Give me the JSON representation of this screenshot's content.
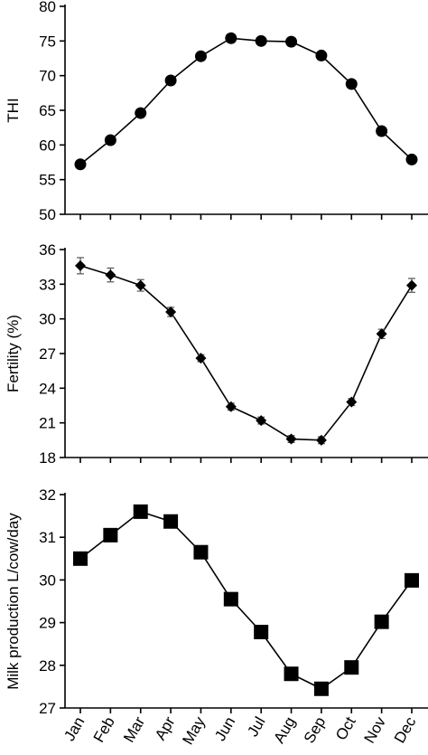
{
  "chart_data": [
    {
      "type": "line",
      "ylabel": "THI",
      "ylim": [
        50,
        80
      ],
      "yticks": [
        50,
        55,
        60,
        65,
        70,
        75,
        80
      ],
      "marker": "circle",
      "categories": [
        "Jan",
        "Feb",
        "Mar",
        "Apr",
        "May",
        "Jun",
        "Jul",
        "Aug",
        "Sep",
        "Oct",
        "Nov",
        "Dec"
      ],
      "values": [
        57.2,
        60.7,
        64.6,
        69.3,
        72.8,
        75.4,
        75.0,
        74.9,
        72.9,
        68.8,
        62.0,
        57.9
      ]
    },
    {
      "type": "line",
      "ylabel": "Fertility (%)",
      "ylim": [
        18,
        36
      ],
      "yticks": [
        18,
        21,
        24,
        27,
        30,
        33,
        36
      ],
      "marker": "diamond",
      "categories": [
        "Jan",
        "Feb",
        "Mar",
        "Apr",
        "May",
        "Jun",
        "Jul",
        "Aug",
        "Sep",
        "Oct",
        "Nov",
        "Dec"
      ],
      "values": [
        34.6,
        33.8,
        32.9,
        30.6,
        26.6,
        22.4,
        21.2,
        19.6,
        19.5,
        22.8,
        28.7,
        32.9
      ],
      "error": [
        0.7,
        0.6,
        0.5,
        0.4,
        0.3,
        0.3,
        0.3,
        0.3,
        0.3,
        0.3,
        0.4,
        0.6
      ]
    },
    {
      "type": "line",
      "ylabel": "Milk production L/cow/day",
      "ylim": [
        27,
        32
      ],
      "yticks": [
        27,
        28,
        29,
        30,
        31,
        32
      ],
      "marker": "square",
      "categories": [
        "Jan",
        "Feb",
        "Mar",
        "Apr",
        "May",
        "Jun",
        "Jul",
        "Aug",
        "Sep",
        "Oct",
        "Nov",
        "Dec"
      ],
      "values": [
        30.5,
        31.05,
        31.6,
        31.37,
        30.65,
        29.55,
        28.78,
        27.8,
        27.45,
        27.95,
        29.02,
        29.99
      ],
      "error": [
        0.07,
        0.07,
        0.07,
        0.07,
        0.07,
        0.07,
        0.07,
        0.07,
        0.1,
        0.08,
        0.07,
        0.07
      ]
    }
  ]
}
